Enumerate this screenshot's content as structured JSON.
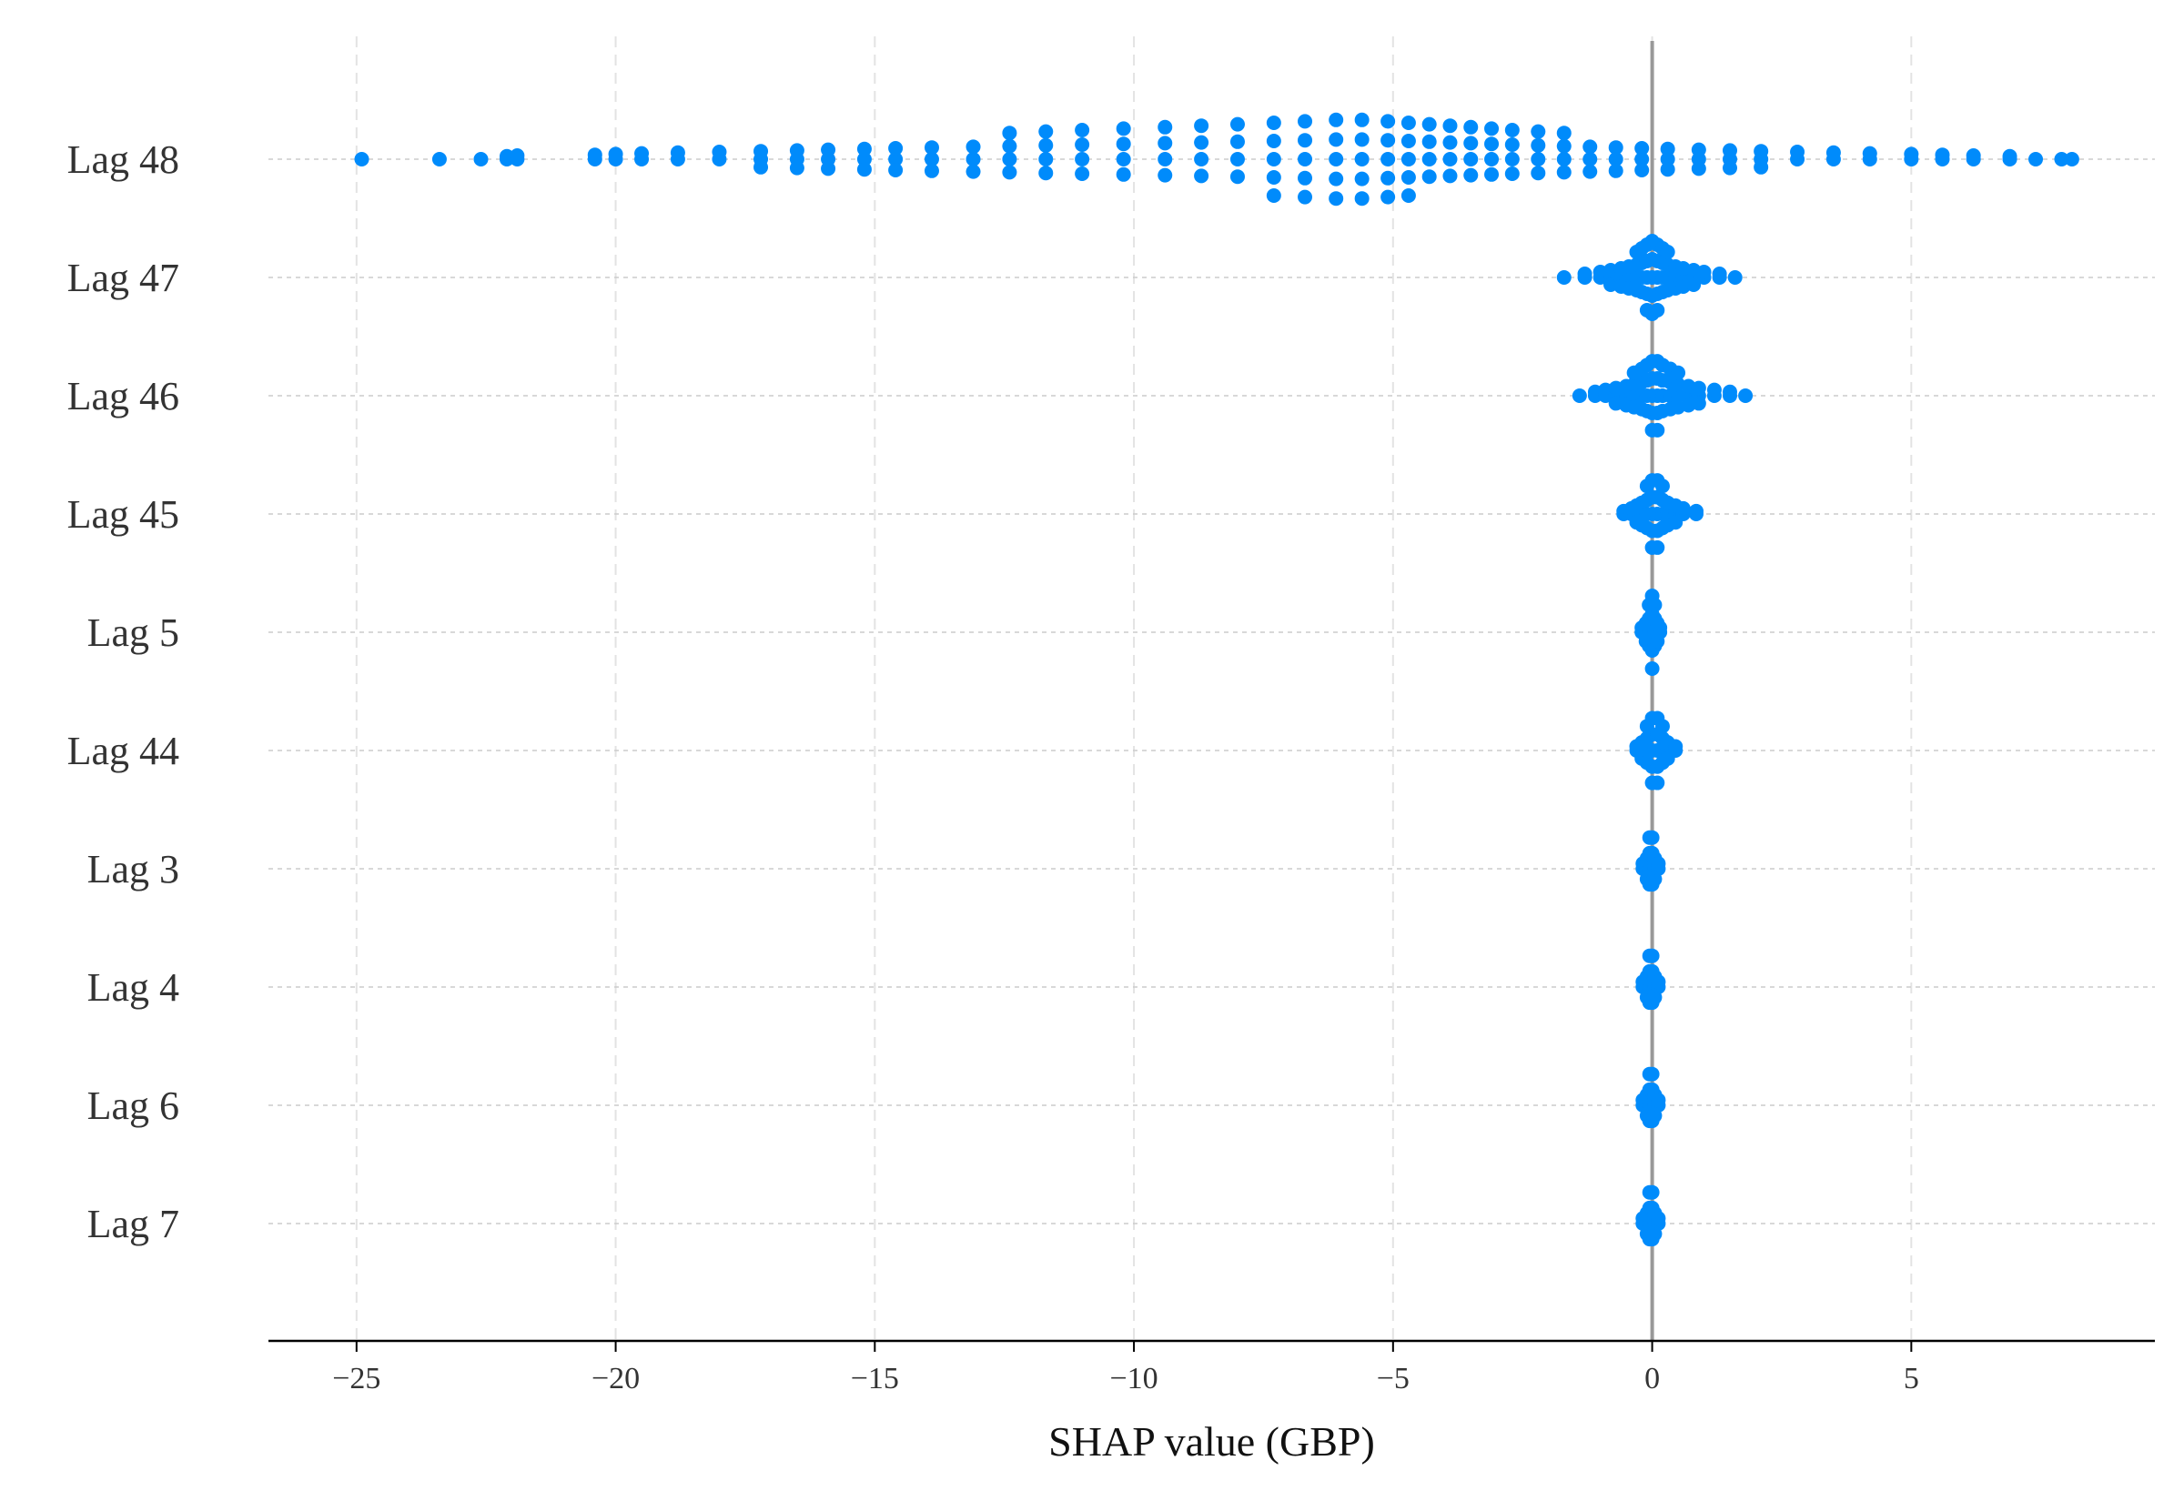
{
  "chart_data": {
    "type": "scatter",
    "subtype": "shap-beeswarm",
    "title": "",
    "xlabel": "SHAP value (GBP)",
    "ylabel": "",
    "xlim": [
      -26.7,
      9.7
    ],
    "xticks": [
      -25,
      -20,
      -15,
      -10,
      -5,
      0,
      5
    ],
    "xtick_labels": [
      "−25",
      "−20",
      "−15",
      "−10",
      "−5",
      "0",
      "5"
    ],
    "zero_line": 0,
    "grid": true,
    "point_color": "#008bfb",
    "features": [
      {
        "name": "Lag 48",
        "values": [
          -24.9,
          -23.4,
          -22.6,
          -22.1,
          -21.9,
          -20.4,
          -20.0,
          -19.5,
          -18.8,
          -18.0,
          -17.2,
          -16.5,
          -15.9,
          -15.2,
          -14.6,
          -13.9,
          -13.1,
          -12.4,
          -11.7,
          -11.0,
          -10.2,
          -9.4,
          -8.7,
          -8.0,
          -7.3,
          -6.7,
          -6.1,
          -5.6,
          -5.1,
          -4.7,
          -4.3,
          -3.9,
          -3.5,
          -3.1,
          -2.7,
          -2.2,
          -1.7,
          -1.2,
          -0.7,
          -0.2,
          0.3,
          0.9,
          1.5,
          2.1,
          2.8,
          3.5,
          4.2,
          5.0,
          5.6,
          6.2,
          6.9,
          7.4,
          7.9,
          8.1
        ]
      },
      {
        "name": "Lag 47",
        "values": [
          -1.7,
          -1.3,
          -1.0,
          -0.8,
          -0.6,
          -0.45,
          -0.3,
          -0.2,
          -0.1,
          0.0,
          0.1,
          0.2,
          0.3,
          0.45,
          0.6,
          0.8,
          1.0,
          1.3,
          1.6
        ]
      },
      {
        "name": "Lag 46",
        "values": [
          -1.4,
          -1.1,
          -0.9,
          -0.7,
          -0.5,
          -0.35,
          -0.2,
          -0.1,
          0.0,
          0.1,
          0.2,
          0.35,
          0.5,
          0.7,
          0.9,
          1.2,
          1.5,
          1.8
        ]
      },
      {
        "name": "Lag 45",
        "values": [
          -0.55,
          -0.4,
          -0.3,
          -0.2,
          -0.1,
          0.0,
          0.1,
          0.2,
          0.3,
          0.45,
          0.6,
          0.85
        ]
      },
      {
        "name": "Lag 5",
        "values": [
          -0.2,
          -0.12,
          -0.06,
          0.0,
          0.05,
          0.1,
          0.15
        ]
      },
      {
        "name": "Lag 44",
        "values": [
          -0.3,
          -0.2,
          -0.1,
          0.0,
          0.1,
          0.2,
          0.3,
          0.45
        ]
      },
      {
        "name": "Lag 3",
        "values": [
          -0.18,
          -0.1,
          -0.05,
          0.0,
          0.05,
          0.12
        ]
      },
      {
        "name": "Lag 4",
        "values": [
          -0.18,
          -0.1,
          -0.05,
          0.0,
          0.05,
          0.12
        ]
      },
      {
        "name": "Lag 6",
        "values": [
          -0.18,
          -0.1,
          -0.05,
          0.0,
          0.05,
          0.12
        ]
      },
      {
        "name": "Lag 7",
        "values": [
          -0.18,
          -0.1,
          -0.05,
          0.0,
          0.05,
          0.12
        ]
      }
    ]
  }
}
